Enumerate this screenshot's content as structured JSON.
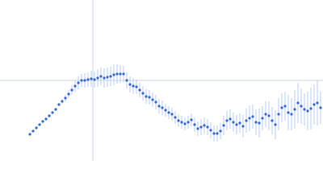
{
  "chart_data": {
    "type": "scatter",
    "xlim": [
      0,
      400
    ],
    "ylim": [
      0,
      200
    ],
    "crosshair": {
      "x": 115,
      "y": 100
    },
    "x": [
      37,
      41,
      45,
      49,
      53,
      57,
      61,
      65,
      69,
      73,
      77,
      81,
      85,
      89,
      93,
      97,
      101,
      105,
      109,
      113,
      117,
      121,
      125,
      129,
      133,
      137,
      141,
      145,
      149,
      153,
      157,
      161,
      165,
      169,
      173,
      177,
      181,
      185,
      189,
      193,
      197,
      201,
      205,
      209,
      213,
      217,
      221,
      225,
      229,
      233,
      237,
      241,
      245,
      249,
      253,
      257,
      261,
      265,
      269,
      273,
      277,
      281,
      285,
      289,
      293,
      297,
      301,
      305,
      309,
      313,
      317,
      321,
      325,
      329,
      333,
      337,
      341,
      345,
      349,
      353,
      357,
      361,
      365,
      369,
      373,
      377,
      381,
      385,
      389,
      393,
      397
    ],
    "series": [
      {
        "color": "#3a66c4",
        "error_color": "#a9c0ec",
        "values": [
          33,
          37,
          41,
          45,
          49,
          52,
          56,
          60,
          64,
          70,
          74,
          78,
          83,
          88,
          93,
          97,
          100,
          100,
          101,
          102,
          101,
          103,
          105,
          103,
          104,
          105,
          107,
          108,
          108,
          108,
          100,
          95,
          93,
          92,
          88,
          84,
          80,
          79,
          76,
          73,
          68,
          66,
          63,
          60,
          58,
          54,
          50,
          48,
          46,
          48,
          51,
          45,
          40,
          42,
          44,
          42,
          38,
          34,
          34,
          37,
          44,
          50,
          52,
          48,
          45,
          47,
          43,
          50,
          53,
          55,
          48,
          47,
          53,
          58,
          56,
          50,
          45,
          58,
          66,
          68,
          60,
          58,
          64,
          72,
          68,
          64,
          62,
          65,
          70,
          72,
          66
        ],
        "errors": [
          1,
          1,
          1,
          1,
          1,
          2,
          2,
          2,
          2,
          2,
          3,
          4,
          5,
          6,
          7,
          8,
          8,
          9,
          9,
          10,
          10,
          11,
          11,
          12,
          12,
          12,
          13,
          12,
          11,
          10,
          10,
          10,
          10,
          9,
          9,
          9,
          9,
          9,
          9,
          9,
          9,
          9,
          8,
          8,
          8,
          8,
          8,
          8,
          8,
          8,
          8,
          9,
          9,
          10,
          10,
          10,
          10,
          10,
          10,
          10,
          12,
          12,
          12,
          12,
          12,
          12,
          14,
          15,
          16,
          15,
          16,
          18,
          15,
          16,
          18,
          17,
          18,
          20,
          18,
          18,
          22,
          20,
          24,
          25,
          22,
          20,
          24,
          26,
          25,
          28,
          20
        ]
      }
    ]
  }
}
